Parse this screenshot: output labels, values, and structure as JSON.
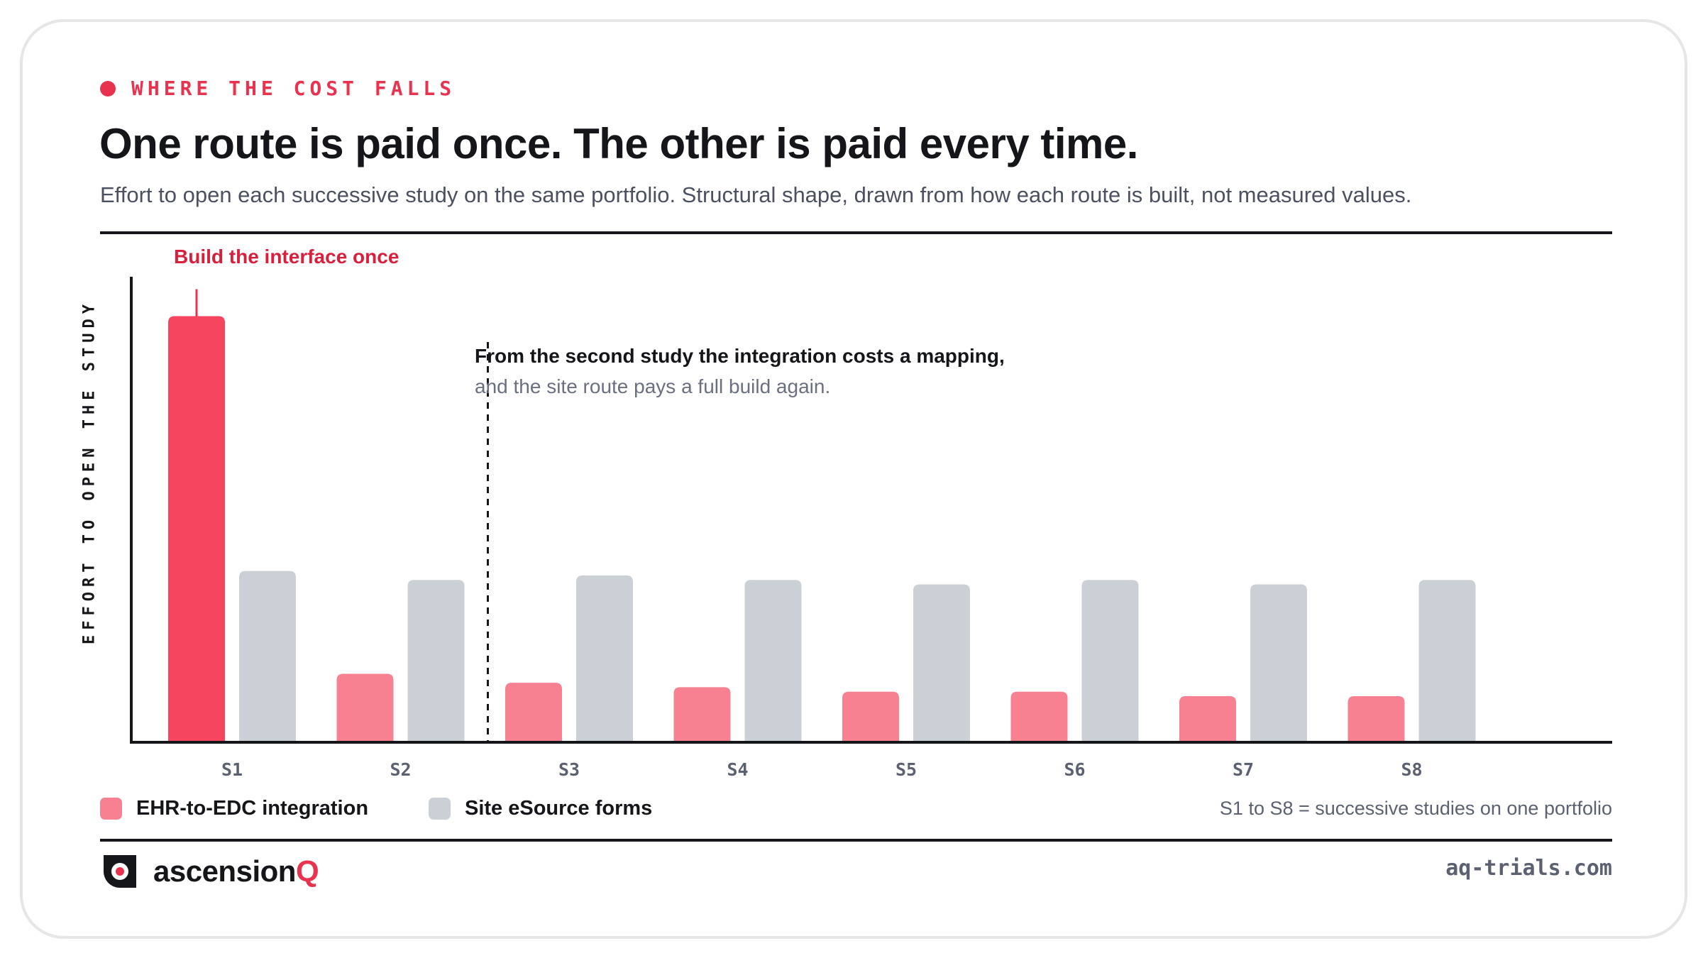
{
  "header": {
    "eyebrow": "WHERE THE COST FALLS",
    "title": "One route is paid once. The other is paid every time.",
    "subtitle": "Effort to open each successive study on the same portfolio. Structural shape, drawn from how each route is built, not measured values."
  },
  "colors": {
    "accent": "#e8324e",
    "integration_first": "#f5455f",
    "integration": "#f78191",
    "site": "#cbcfd6",
    "ink": "#15161a"
  },
  "chart_data": {
    "type": "bar",
    "ylabel": "EFFORT TO OPEN THE STUDY",
    "xlabel": "",
    "categories": [
      "S1",
      "S2",
      "S3",
      "S4",
      "S5",
      "S6",
      "S7",
      "S8"
    ],
    "ylim": [
      0,
      100
    ],
    "series": [
      {
        "name": "EHR-to-EDC integration",
        "values": [
          95,
          15,
          13,
          12,
          11,
          11,
          10,
          10
        ]
      },
      {
        "name": "Site eSource forms",
        "values": [
          38,
          36,
          37,
          36,
          35,
          36,
          35,
          36
        ]
      }
    ],
    "annotations": {
      "first_bar": "Build the interface once",
      "divider_line1": "From the second study the integration costs a mapping,",
      "divider_line2": "and the site route pays a full build again."
    },
    "grid": false,
    "legend": "bottom-left"
  },
  "legend_items": [
    {
      "label": "EHR-to-EDC integration",
      "color": "#f78191"
    },
    {
      "label": "Site eSource forms",
      "color": "#cbcfd6"
    }
  ],
  "footnote": "S1 to S8 = successive studies on one portfolio",
  "brand": {
    "name_main": "ascension",
    "name_accent": "Q",
    "logo_icon": "ascensionq-logo-icon"
  },
  "site_url": "aq-trials.com"
}
